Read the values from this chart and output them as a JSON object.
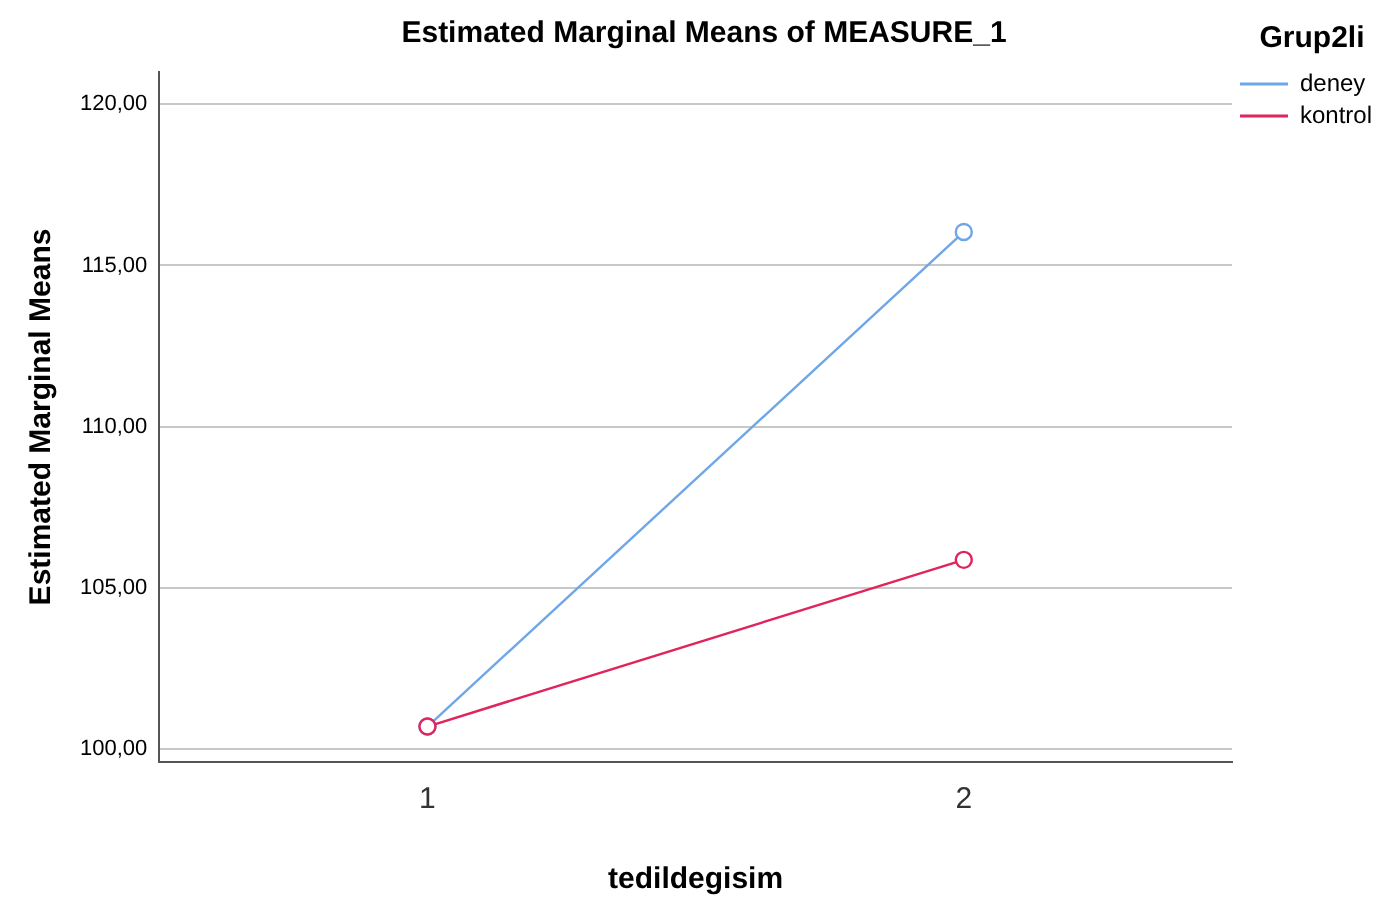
{
  "chart_data": {
    "type": "line",
    "title": "Estimated Marginal Means of MEASURE_1",
    "xlabel": "tedildegisim",
    "ylabel": "Estimated Marginal Means",
    "legend_title": "Grup2li",
    "categories": [
      "1",
      "2"
    ],
    "series": [
      {
        "name": "deney",
        "color": "#6ea6e8",
        "values": [
          100.7,
          116.04
        ]
      },
      {
        "name": "kontrol",
        "color": "#e0245c",
        "values": [
          100.7,
          105.87
        ]
      }
    ],
    "ylim": [
      99.6,
      121
    ],
    "yticks": [
      {
        "value": 100,
        "label": "100,00"
      },
      {
        "value": 105,
        "label": "105,00"
      },
      {
        "value": 110,
        "label": "110,00"
      },
      {
        "value": 115,
        "label": "115,00"
      },
      {
        "value": 120,
        "label": "120,00"
      }
    ],
    "grid": "y",
    "legend": "top right",
    "marker": "circle",
    "line_style": "solid"
  }
}
